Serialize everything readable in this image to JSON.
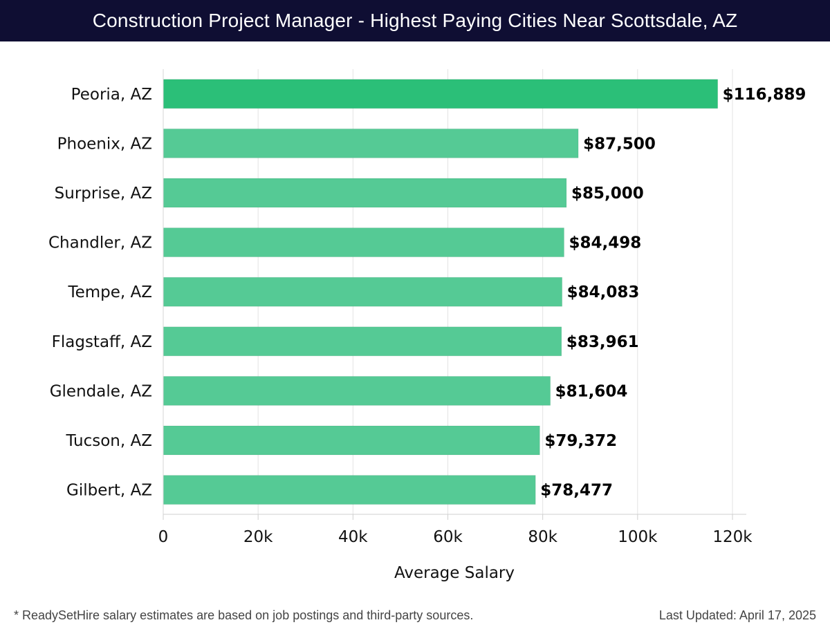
{
  "header": {
    "title": "Construction Project Manager - Highest Paying Cities Near Scottsdale, AZ"
  },
  "chart_data": {
    "type": "bar",
    "orientation": "horizontal",
    "categories": [
      "Peoria, AZ",
      "Phoenix, AZ",
      "Surprise, AZ",
      "Chandler, AZ",
      "Tempe, AZ",
      "Flagstaff, AZ",
      "Glendale, AZ",
      "Tucson, AZ",
      "Gilbert, AZ"
    ],
    "values": [
      116889,
      87500,
      85000,
      84498,
      84083,
      83961,
      81604,
      79372,
      78477
    ],
    "data_labels": [
      "$116,889",
      "$87,500",
      "$85,000",
      "$84,498",
      "$84,083",
      "$83,961",
      "$81,604",
      "$79,372",
      "$78,477"
    ],
    "xlabel": "Average Salary",
    "ylabel": "",
    "xlim": [
      0,
      120000
    ],
    "ticks": [
      0,
      20000,
      40000,
      60000,
      80000,
      100000,
      120000
    ],
    "tick_labels": [
      "0",
      "20k",
      "40k",
      "60k",
      "80k",
      "100k",
      "120k"
    ],
    "grid": true,
    "colors": {
      "highlight": "#2bbf78",
      "bar": "#55ca95"
    }
  },
  "footer": {
    "note": "* ReadySetHire salary estimates are based on job postings and third-party sources.",
    "updated": "Last Updated: April 17, 2025"
  }
}
